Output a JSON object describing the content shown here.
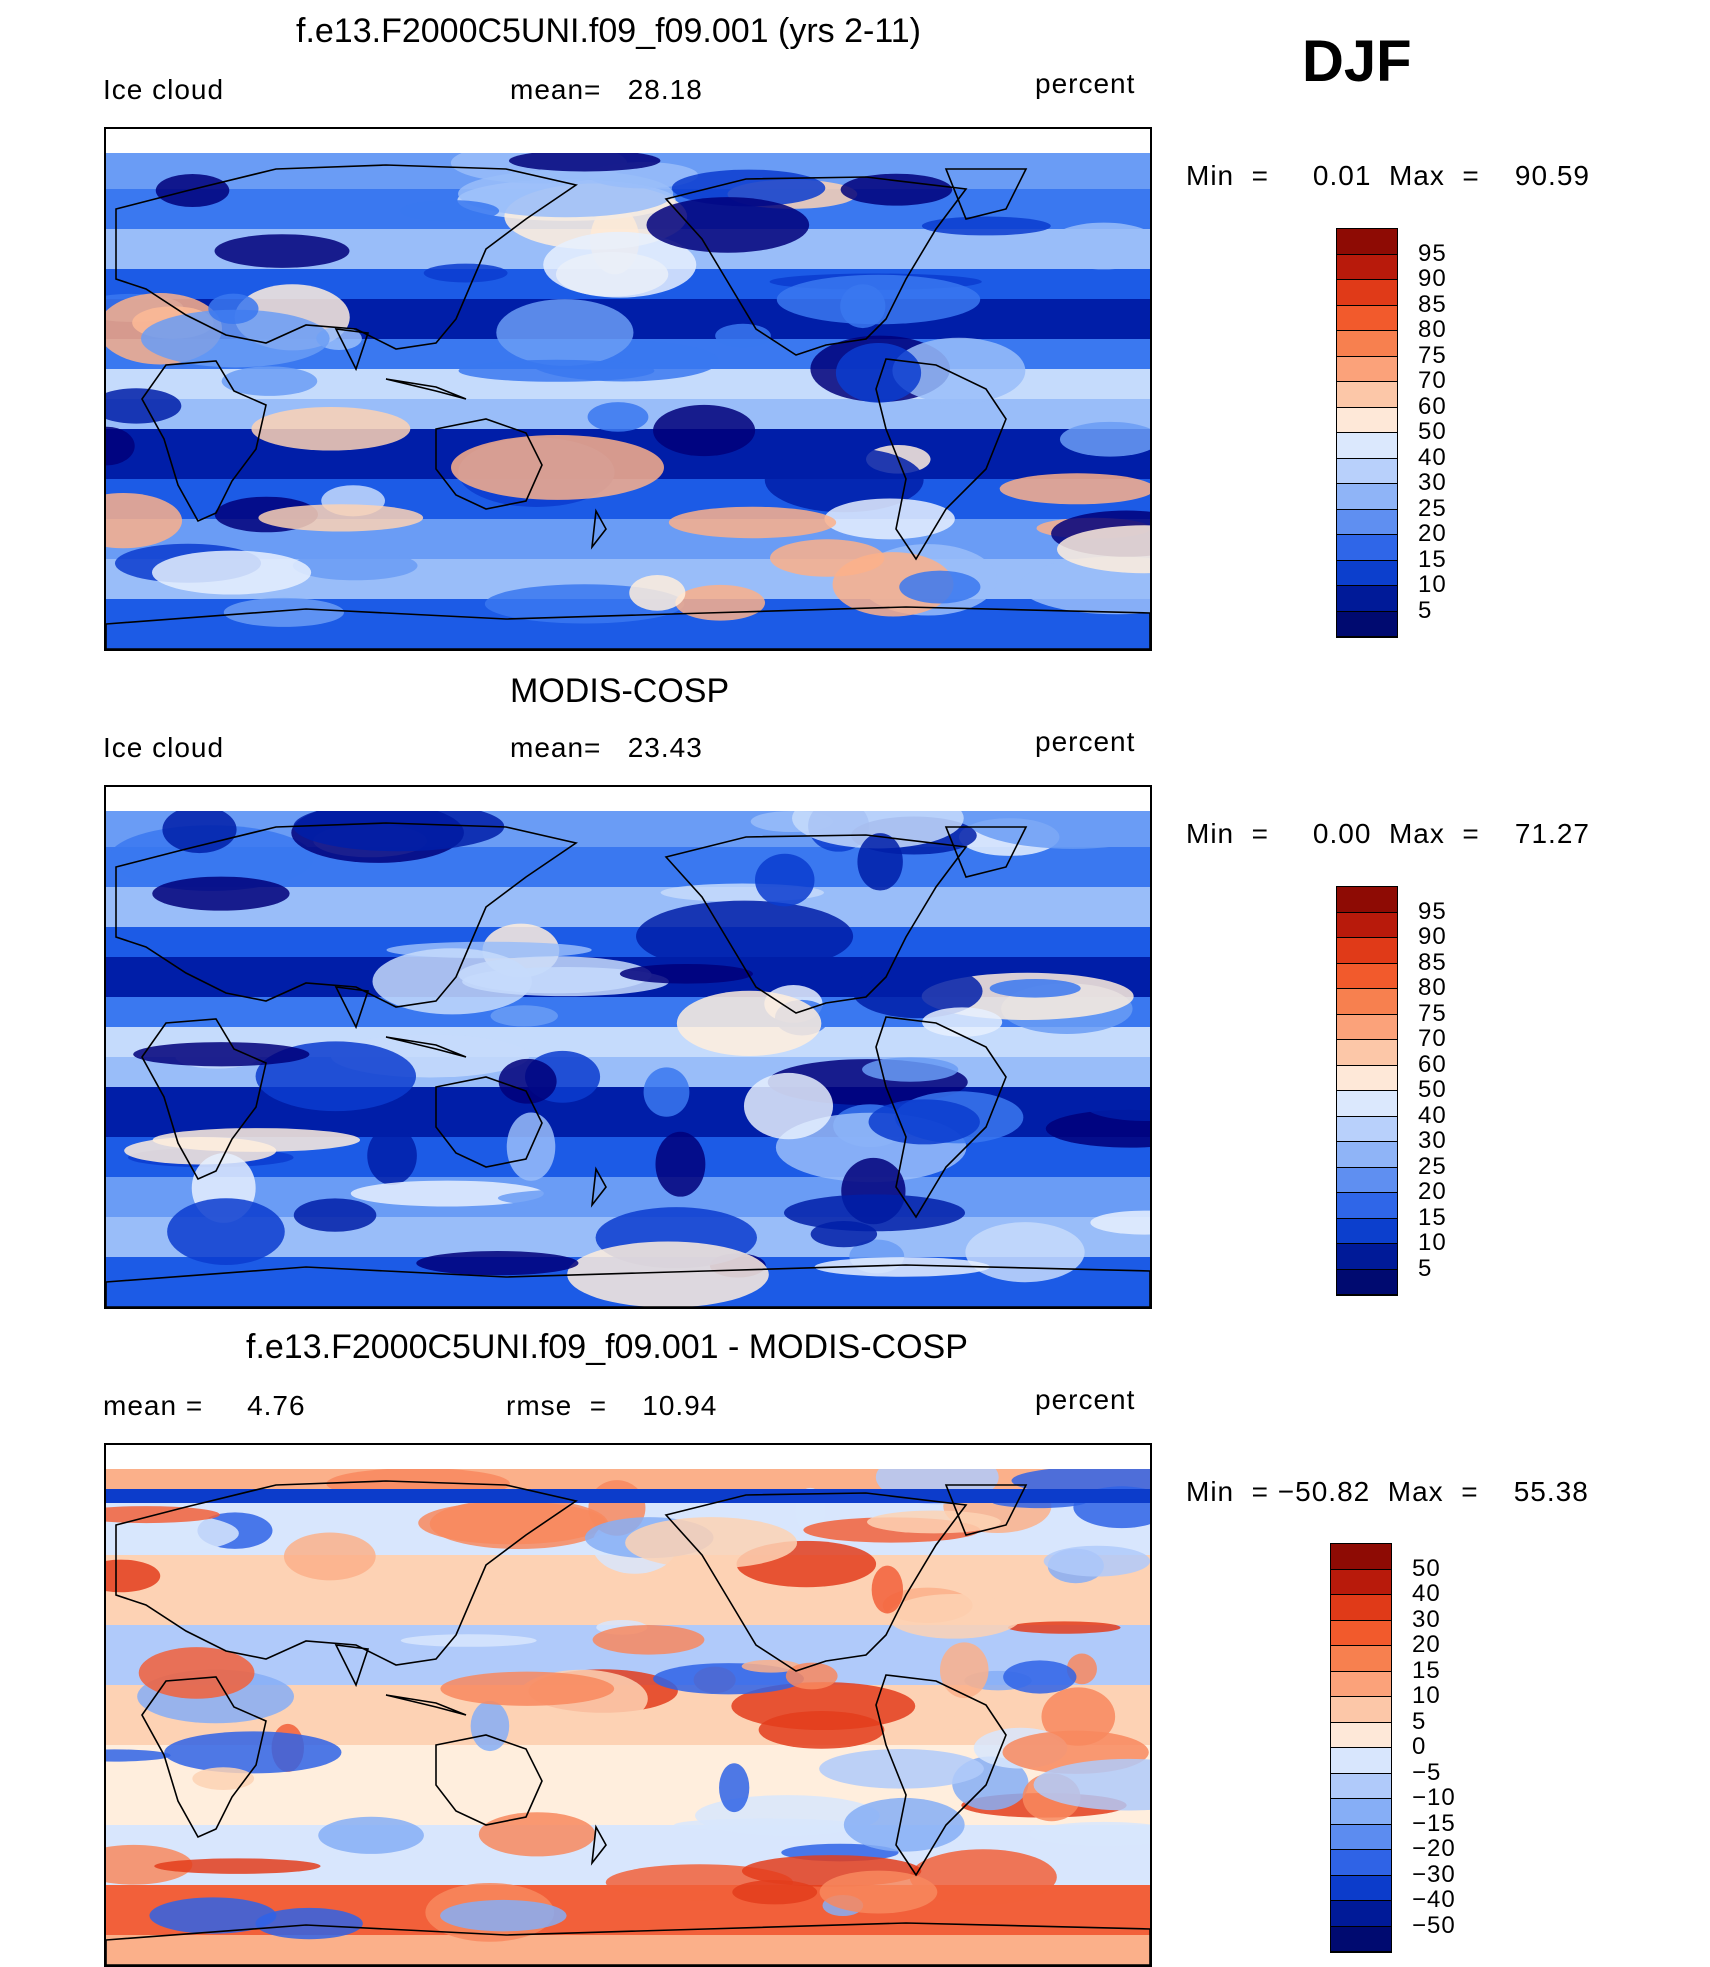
{
  "season": "DJF",
  "colors": {
    "blues": [
      "#00007a",
      "#001ea8",
      "#0a3ccf",
      "#1c5be6",
      "#3a78f0",
      "#6a9cf5",
      "#99bdf9",
      "#c5dbfc",
      "#e6f0fe"
    ],
    "reds": [
      "#ffeedd",
      "#fdd2b4",
      "#fbb08a",
      "#f8885e",
      "#f2603a",
      "#e33d1c",
      "#c4200c",
      "#8e0b04"
    ],
    "land": "#000000"
  },
  "panels": [
    {
      "title": "f.e13.F2000C5UNI.f09_f09.001 (yrs 2-11)",
      "left_label": "Ice cloud",
      "mid_label": "mean=   28.18",
      "right_label": "percent",
      "minmax": "Min  =     0.01  Max  =    90.59",
      "map_type": "abs",
      "colorbar": {
        "levels": [
          "95",
          "90",
          "85",
          "80",
          "75",
          "70",
          "60",
          "50",
          "40",
          "30",
          "25",
          "20",
          "15",
          "10",
          "5"
        ],
        "colors": [
          "#8e0b04",
          "#b81a0b",
          "#e03a18",
          "#f25a2c",
          "#f7804f",
          "#fba27a",
          "#fcc7a8",
          "#fee8d8",
          "#dbe8fd",
          "#b8d0fb",
          "#8fb4f7",
          "#5f8ff1",
          "#2f66e8",
          "#0c3fcd",
          "#001a98",
          "#000a70"
        ]
      },
      "map_note": "mean bands"
    },
    {
      "title": "MODIS-COSP",
      "left_label": "Ice cloud",
      "mid_label": "mean=   23.43",
      "right_label": "percent",
      "minmax": "Min  =     0.00  Max  =    71.27",
      "map_type": "abs",
      "colorbar": {
        "levels": [
          "95",
          "90",
          "85",
          "80",
          "75",
          "70",
          "60",
          "50",
          "40",
          "30",
          "25",
          "20",
          "15",
          "10",
          "5"
        ],
        "colors": [
          "#8e0b04",
          "#b81a0b",
          "#e03a18",
          "#f25a2c",
          "#f7804f",
          "#fba27a",
          "#fcc7a8",
          "#fee8d8",
          "#dbe8fd",
          "#b8d0fb",
          "#8fb4f7",
          "#5f8ff1",
          "#2f66e8",
          "#0c3fcd",
          "#001a98",
          "#000a70"
        ]
      }
    },
    {
      "title": "f.e13.F2000C5UNI.f09_f09.001 - MODIS-COSP",
      "left_label": "mean =     4.76",
      "mid_label": "rmse  =    10.94",
      "right_label": "percent",
      "minmax": "Min  = −50.82  Max  =    55.38",
      "map_type": "diff",
      "colorbar": {
        "levels": [
          "50",
          "40",
          "30",
          "20",
          "15",
          "10",
          "5",
          "0",
          "−5",
          "−10",
          "−15",
          "−20",
          "−30",
          "−40",
          "−50"
        ],
        "colors": [
          "#8e0b04",
          "#b81a0b",
          "#e03a18",
          "#f25a2c",
          "#f7804f",
          "#fba27a",
          "#fcc7a8",
          "#fee8d8",
          "#d8e6fd",
          "#b0cafa",
          "#86aef6",
          "#5c8cf0",
          "#2f63e6",
          "#0c3ccb",
          "#001a98",
          "#000a70"
        ]
      }
    }
  ]
}
